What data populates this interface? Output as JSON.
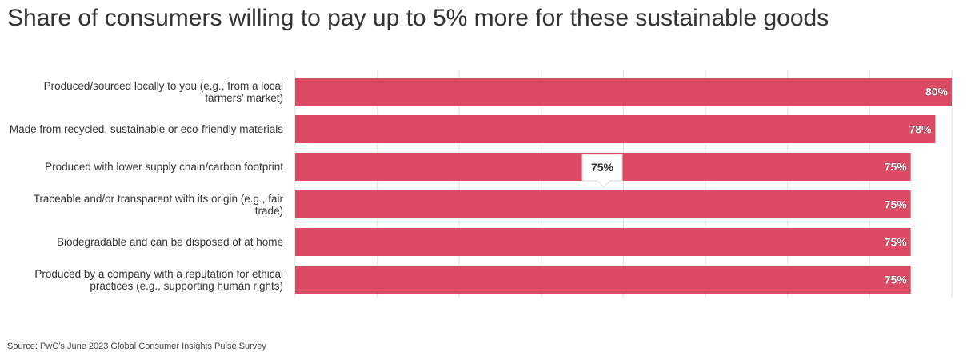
{
  "chart_data": {
    "type": "bar",
    "orientation": "horizontal",
    "title": "Share of consumers willing to pay up to 5% more for these sustainable goods",
    "categories": [
      "Produced/sourced locally to you (e.g., from a local farmers’ market)",
      "Made from recycled, sustainable or eco-friendly materials",
      "Produced with lower supply chain/carbon footprint",
      "Traceable and/or transparent with its origin (e.g., fair trade)",
      "Biodegradable and can be disposed of at home",
      "Produced by a company with a reputation for ethical practices (e.g., supporting human rights)"
    ],
    "values": [
      80,
      78,
      75,
      75,
      75,
      75
    ],
    "value_labels": [
      "80%",
      "78%",
      "75%",
      "75%",
      "75%",
      "75%"
    ],
    "color": "#dc4a63",
    "xlim": [
      0,
      80
    ],
    "xticks": [
      0,
      10,
      20,
      30,
      40,
      50,
      60,
      70,
      80
    ],
    "grid": true,
    "tooltip": "75%",
    "source": "Source: PwC’s June 2023 Global Consumer Insights Pulse Survey"
  }
}
